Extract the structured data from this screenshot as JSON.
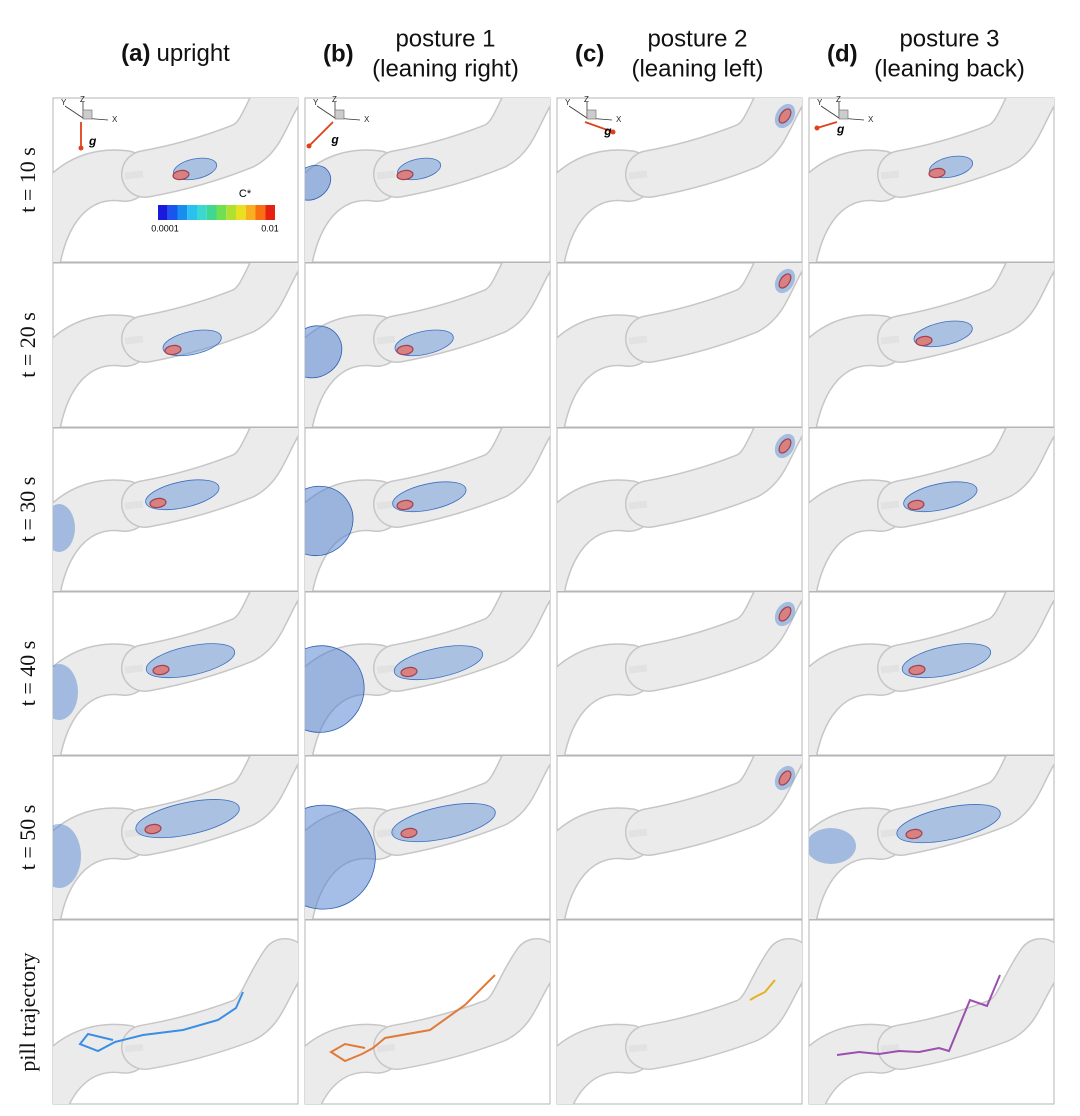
{
  "columns": [
    {
      "letter": "(a)",
      "title": "upright"
    },
    {
      "letter": "(b)",
      "title": "posture 1",
      "subtitle": "(leaning right)"
    },
    {
      "letter": "(c)",
      "title": "posture 2",
      "subtitle": "(leaning left)"
    },
    {
      "letter": "(d)",
      "title": "posture 3",
      "subtitle": "(leaning back)"
    }
  ],
  "rows": [
    "t = 10 s",
    "t = 20 s",
    "t = 30 s",
    "t = 40 s",
    "t = 50 s",
    "pill trajectory"
  ],
  "colorbar": {
    "title": "C*",
    "min_label": "0.0001",
    "max_label": "0.01"
  },
  "axes_labels": {
    "y": "Y",
    "z": "Z",
    "x": "X",
    "g": "g"
  }
}
